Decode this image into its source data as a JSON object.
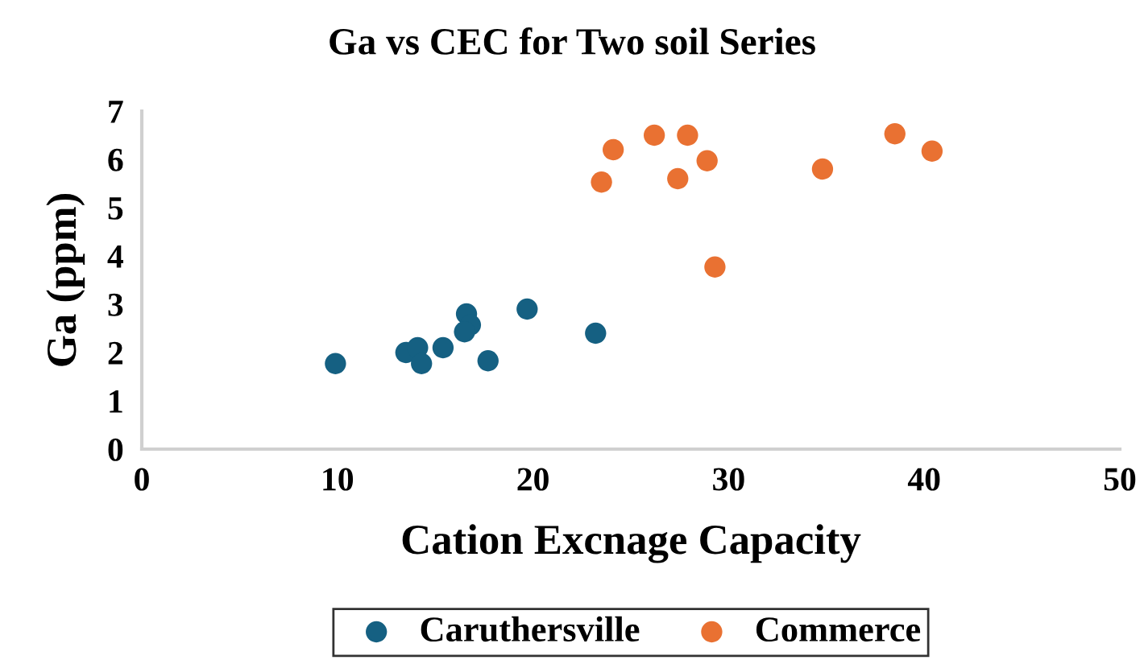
{
  "chart_data": {
    "type": "scatter",
    "title": "Ga vs CEC for Two soil Series",
    "xlabel": "Cation Excnage Capacity",
    "ylabel": "Ga (ppm)",
    "xlim": [
      0,
      50
    ],
    "xticks": [
      0,
      10,
      20,
      30,
      40,
      50
    ],
    "ylim": [
      0,
      7
    ],
    "yticks": [
      0,
      1,
      2,
      3,
      4,
      5,
      6,
      7
    ],
    "grid": false,
    "legend": "bottom",
    "marker": "circle",
    "series": [
      {
        "name": "Caruthersville",
        "color": "#156082",
        "x": [
          9.9,
          13.5,
          14.1,
          14.3,
          15.4,
          16.6,
          16.8,
          16.5,
          17.7,
          19.7,
          23.2
        ],
        "values": [
          1.77,
          2.0,
          2.1,
          1.77,
          2.1,
          2.8,
          2.57,
          2.43,
          1.83,
          2.9,
          2.4
        ]
      },
      {
        "name": "Commerce",
        "color": "#e97132",
        "x": [
          23.5,
          24.1,
          26.2,
          27.4,
          27.9,
          28.9,
          29.3,
          34.8,
          38.5,
          40.4
        ],
        "values": [
          5.53,
          6.2,
          6.5,
          5.6,
          6.5,
          5.97,
          3.77,
          5.8,
          6.53,
          6.17
        ]
      }
    ]
  }
}
